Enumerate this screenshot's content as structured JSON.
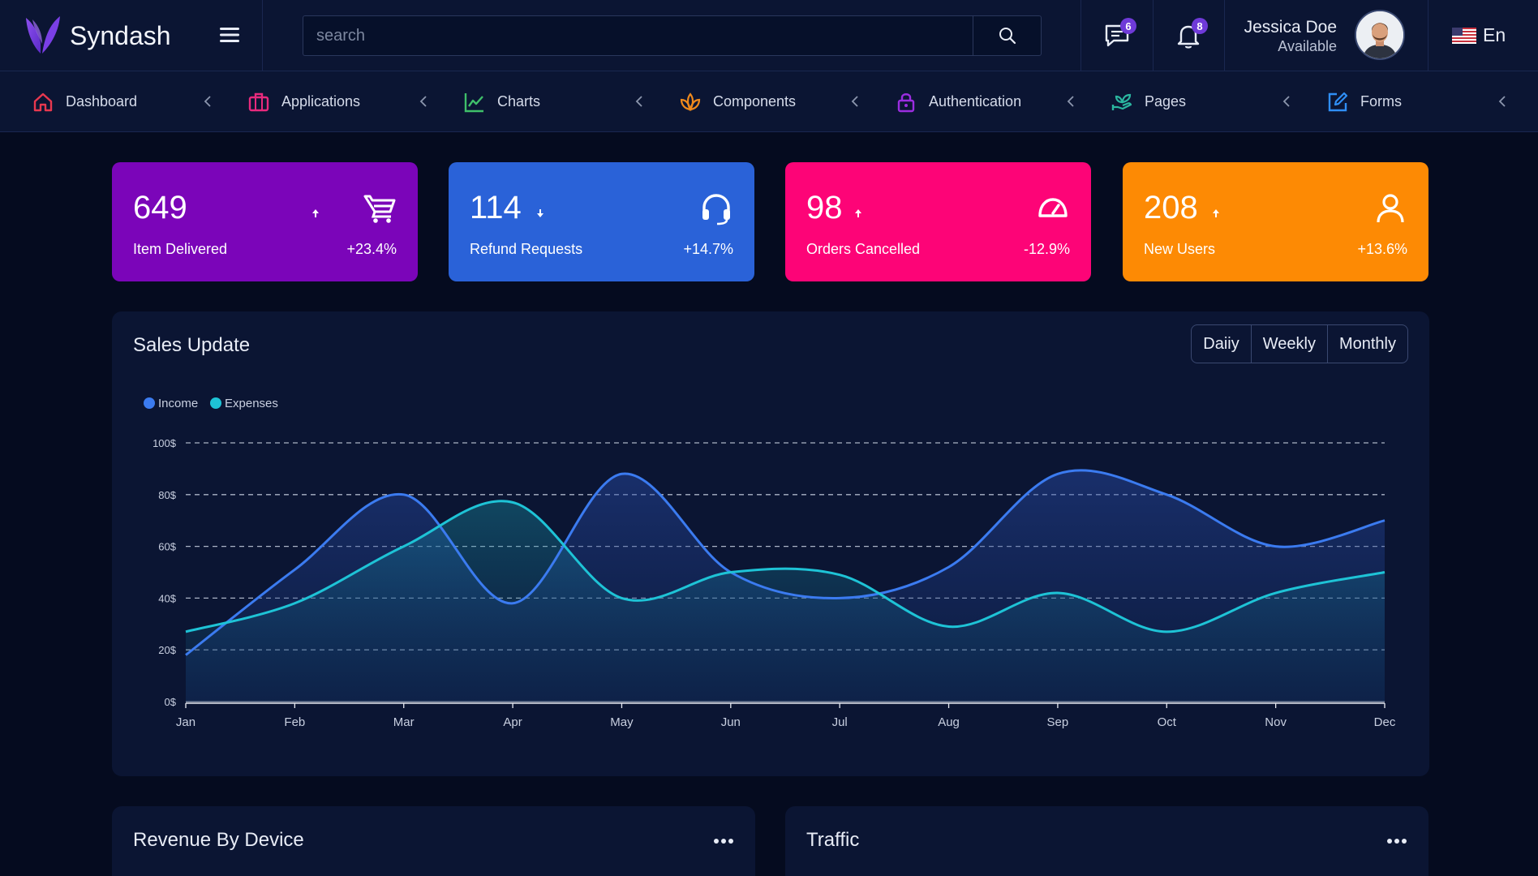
{
  "header": {
    "brand": "Syndash",
    "search_placeholder": "search",
    "messages_count": "6",
    "notifications_count": "8",
    "user_name": "Jessica Doe",
    "user_status": "Available",
    "language": "En"
  },
  "nav": [
    {
      "label": "Dashboard",
      "icon": "home-icon",
      "color": "#e8384f"
    },
    {
      "label": "Applications",
      "icon": "briefcase-icon",
      "color": "#e82a7d"
    },
    {
      "label": "Charts",
      "icon": "line-chart-icon",
      "color": "#3fbf6a"
    },
    {
      "label": "Components",
      "icon": "lotus-icon",
      "color": "#f08a1c"
    },
    {
      "label": "Authentication",
      "icon": "lock-icon",
      "color": "#9b2de0"
    },
    {
      "label": "Pages",
      "icon": "hand-plant-icon",
      "color": "#2bb6a0"
    },
    {
      "label": "Forms",
      "icon": "edit-square-icon",
      "color": "#2f8ef5"
    }
  ],
  "stats": [
    {
      "value": "649",
      "trend": "up",
      "label": "Item Delivered",
      "change": "+23.4%",
      "color": "#7b05b9",
      "icon": "cart-icon"
    },
    {
      "value": "114",
      "trend": "down",
      "label": "Refund Requests",
      "change": "+14.7%",
      "color": "#2a62d8",
      "icon": "headset-icon"
    },
    {
      "value": "98",
      "trend": "up",
      "label": "Orders Cancelled",
      "change": "-12.9%",
      "color": "#fd0477",
      "icon": "speedometer-icon"
    },
    {
      "value": "208",
      "trend": "up",
      "label": "New Users",
      "change": "+13.6%",
      "color": "#fd8a04",
      "icon": "user-icon"
    }
  ],
  "sales": {
    "title": "Sales Update",
    "range_buttons": [
      "Daiiy",
      "Weekly",
      "Monthly"
    ]
  },
  "chart_data": {
    "type": "area",
    "title": "Sales Update",
    "categories": [
      "Jan",
      "Feb",
      "Mar",
      "Apr",
      "May",
      "Jun",
      "Jul",
      "Aug",
      "Sep",
      "Oct",
      "Nov",
      "Dec"
    ],
    "series": [
      {
        "name": "Income",
        "color": "#3b7bf0",
        "values": [
          18,
          51,
          80,
          38,
          88,
          50,
          40,
          52,
          88,
          80,
          60,
          70
        ]
      },
      {
        "name": "Expenses",
        "color": "#1ec3d6",
        "values": [
          27,
          38,
          60,
          77,
          40,
          50,
          49,
          29,
          42,
          27,
          42,
          50
        ]
      }
    ],
    "y_ticks": [
      "0$",
      "20$",
      "40$",
      "60$",
      "80$",
      "100$"
    ],
    "ylim": [
      0,
      100
    ],
    "grid": true,
    "legend_position": "top-left"
  },
  "revenue": {
    "title": "Revenue By Device"
  },
  "traffic": {
    "title": "Traffic"
  }
}
